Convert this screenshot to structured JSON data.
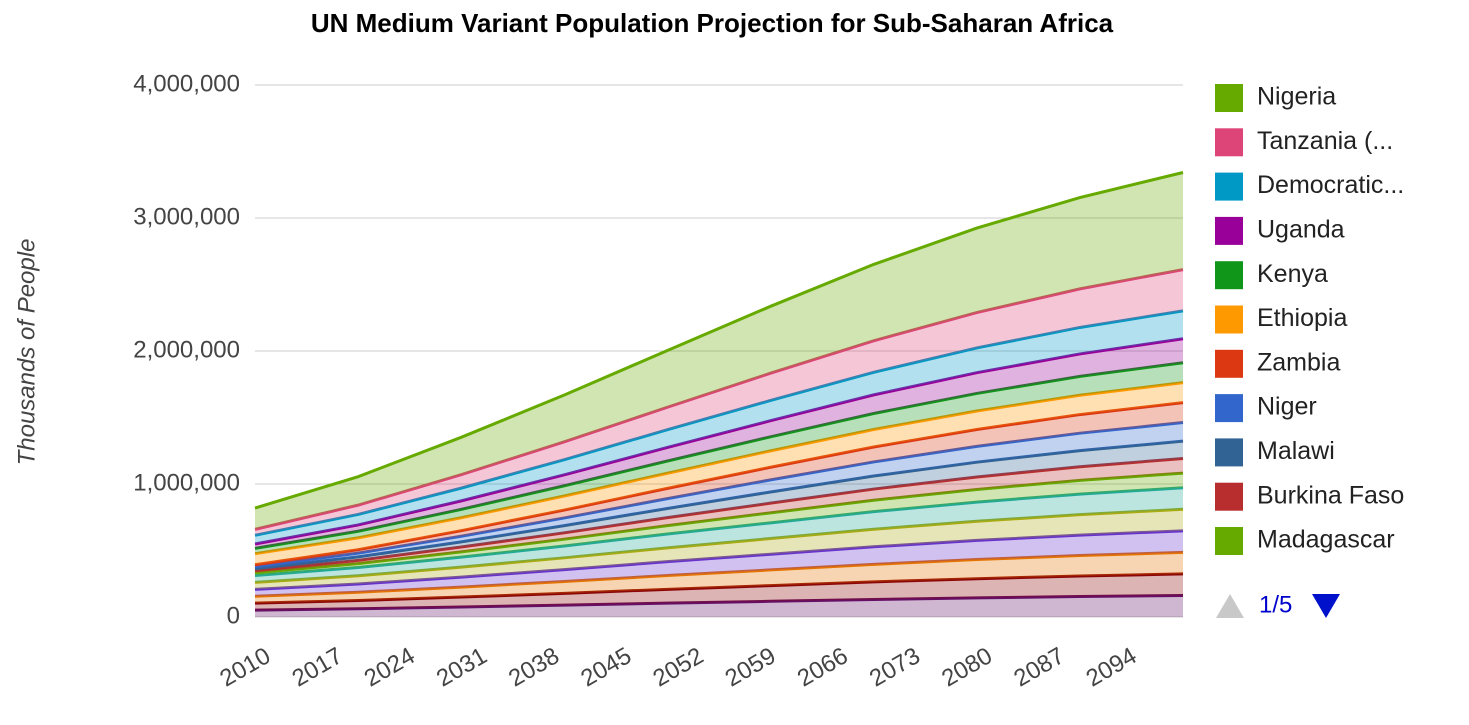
{
  "chart_data": {
    "type": "stacked-area",
    "title": "UN Medium Variant Population Projection for Sub-Saharan Africa",
    "y_label": "Thousands of People",
    "x": [
      2010,
      2020,
      2030,
      2040,
      2050,
      2060,
      2070,
      2080,
      2090,
      2100
    ],
    "xlim": [
      2010,
      2100
    ],
    "xticks": [
      2010,
      2017,
      2024,
      2031,
      2038,
      2045,
      2052,
      2059,
      2066,
      2073,
      2080,
      2087,
      2094
    ],
    "ylim": [
      0,
      4000000
    ],
    "yticks": [
      0,
      {
        "value": 1000000,
        "label": "1,000,000"
      },
      {
        "value": 2000000,
        "label": "2,000,000"
      },
      {
        "value": 3000000,
        "label": "3,000,000"
      },
      {
        "value": 4000000,
        "label": "4,000,000"
      }
    ],
    "grid": true,
    "legend": "right",
    "legend_page": "1/5",
    "series": [
      {
        "name": "Nigeria",
        "color": "#66aa00",
        "values": [
          160000,
          214000,
          281000,
          352000,
          427000,
          503000,
          574000,
          635000,
          687000,
          730000
        ]
      },
      {
        "name": "Tanzania (...",
        "color": "#dd4477",
        "values": [
          45000,
          70000,
          101000,
          134000,
          169000,
          205000,
          237000,
          266000,
          290000,
          310000
        ]
      },
      {
        "name": "Democratic...",
        "color": "#0099c6",
        "values": [
          65000,
          79000,
          96000,
          114000,
          133000,
          152000,
          170000,
          186000,
          199000,
          210000
        ]
      },
      {
        "name": "Uganda",
        "color": "#990099",
        "values": [
          33000,
          47000,
          64000,
          82000,
          102000,
          121000,
          140000,
          156000,
          169000,
          180000
        ]
      },
      {
        "name": "Kenya",
        "color": "#109618",
        "values": [
          40000,
          50000,
          63000,
          77000,
          92000,
          106000,
          120000,
          132000,
          142000,
          150000
        ]
      },
      {
        "name": "Ethiopia",
        "color": "#ff9900",
        "values": [
          83000,
          89000,
          97000,
          106000,
          114000,
          123000,
          132000,
          139000,
          145000,
          150000
        ]
      },
      {
        "name": "Zambia",
        "color": "#dc3912",
        "values": [
          13000,
          26000,
          42000,
          59000,
          77000,
          95000,
          112000,
          127000,
          140000,
          150000
        ]
      },
      {
        "name": "Niger",
        "color": "#3366cc",
        "values": [
          16000,
          28000,
          42000,
          58000,
          74000,
          91000,
          106000,
          119000,
          131000,
          140000
        ]
      },
      {
        "name": "Malawi",
        "color": "#316395",
        "values": [
          15000,
          26000,
          39000,
          54000,
          69000,
          84000,
          98000,
          111000,
          121000,
          130000
        ]
      },
      {
        "name": "Burkina Faso",
        "color": "#b82e2e",
        "values": [
          16000,
          25000,
          36000,
          48000,
          60000,
          73000,
          84000,
          94000,
          103000,
          110000
        ]
      },
      {
        "name": "Madagascar",
        "color": "#66aa00",
        "values": [
          21000,
          29000,
          40000,
          51000,
          63000,
          75000,
          86000,
          95000,
          103000,
          110000
        ]
      },
      {
        "color": "#22aa99",
        "values": [
          52000,
          62000,
          75000,
          89000,
          104000,
          118000,
          132000,
          144000,
          154000,
          162000
        ]
      },
      {
        "color": "#aaaa11",
        "values": [
          52000,
          62000,
          75000,
          89000,
          104000,
          118000,
          132000,
          144000,
          154000,
          162000
        ]
      },
      {
        "color": "#6633cc",
        "values": [
          52000,
          62000,
          75000,
          89000,
          104000,
          118000,
          132000,
          144000,
          154000,
          162000
        ]
      },
      {
        "color": "#e67300",
        "values": [
          52000,
          62000,
          75000,
          89000,
          104000,
          118000,
          132000,
          144000,
          154000,
          162000
        ]
      },
      {
        "color": "#8b0707",
        "values": [
          52000,
          62000,
          75000,
          89000,
          104000,
          118000,
          132000,
          144000,
          154000,
          162000
        ]
      },
      {
        "color": "#651067",
        "values": [
          52000,
          62000,
          75000,
          89000,
          104000,
          118000,
          132000,
          144000,
          154000,
          162000
        ]
      }
    ]
  }
}
